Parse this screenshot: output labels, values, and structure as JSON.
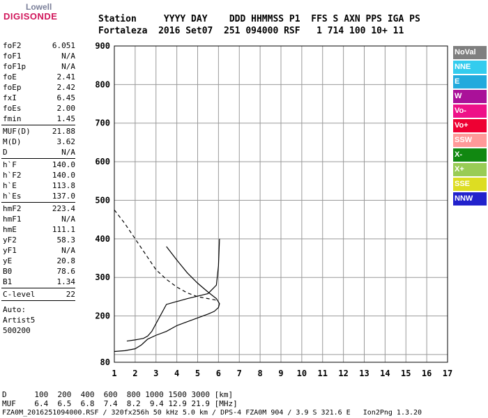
{
  "logo": {
    "top": "Lowell",
    "main": "DIGISONDE"
  },
  "header": {
    "line1": "Station     YYYY DAY    DDD HHMMSS P1  FFS S AXN PPS IGA PS",
    "line2": "Fortaleza  2016 Set07  251 094000 RSF   1 714 100 10+ 11"
  },
  "params": {
    "g1": [
      {
        "name": "foF2",
        "value": "6.051"
      },
      {
        "name": "foF1",
        "value": "N/A"
      },
      {
        "name": "foF1p",
        "value": "N/A"
      },
      {
        "name": "foE",
        "value": "2.41"
      },
      {
        "name": "foEp",
        "value": "2.42"
      },
      {
        "name": "fxI",
        "value": "6.45"
      },
      {
        "name": "foEs",
        "value": "2.00"
      },
      {
        "name": "fmin",
        "value": "1.45"
      }
    ],
    "g2": [
      {
        "name": "MUF(D)",
        "value": "21.88"
      },
      {
        "name": "M(D)",
        "value": "3.62"
      },
      {
        "name": "D",
        "value": "N/A"
      }
    ],
    "g3": [
      {
        "name": "h`F",
        "value": "140.0"
      },
      {
        "name": "h`F2",
        "value": "140.0"
      },
      {
        "name": "h`E",
        "value": "113.8"
      },
      {
        "name": "h`Es",
        "value": "137.0"
      }
    ],
    "g4": [
      {
        "name": "hmF2",
        "value": "223.4"
      },
      {
        "name": "hmF1",
        "value": "N/A"
      },
      {
        "name": "hmE",
        "value": "111.1"
      },
      {
        "name": "yF2",
        "value": "58.3"
      },
      {
        "name": "yF1",
        "value": "N/A"
      },
      {
        "name": "yE",
        "value": "20.8"
      },
      {
        "name": "B0",
        "value": "78.6"
      },
      {
        "name": "B1",
        "value": "1.34"
      }
    ],
    "g5": [
      {
        "name": "C-level",
        "value": "22"
      }
    ],
    "auto": [
      "Auto:",
      "Artist5",
      "500200"
    ]
  },
  "legend": [
    {
      "label": "NoVal",
      "color": "#7f7f7f"
    },
    {
      "label": "NNE",
      "color": "#33ccee"
    },
    {
      "label": "E",
      "color": "#22aadd"
    },
    {
      "label": "W",
      "color": "#aa1199"
    },
    {
      "label": "Vo-",
      "color": "#ee1188"
    },
    {
      "label": "Vo+",
      "color": "#ee0033"
    },
    {
      "label": "SSW",
      "color": "#ff9999"
    },
    {
      "label": "X-",
      "color": "#118811"
    },
    {
      "label": "X+",
      "color": "#99cc55"
    },
    {
      "label": "SSE",
      "color": "#dddd22"
    },
    {
      "label": "NNW",
      "color": "#2222cc"
    }
  ],
  "footer": {
    "row1": "D      100  200  400  600  800 1000 1500 3000 [km]",
    "row2": "MUF    6.4  6.5  6.8  7.4  8.2  9.4 12.9 21.9 [MHz]",
    "row3": "FZA0M_2016251094000.RSF / 320fx256h 50 kHz 5.0 km / DPS-4 FZA0M 904 / 3.9 S 321.6 E   Ion2Png 1.3.20"
  },
  "chart_data": {
    "type": "scatter",
    "title": "",
    "xlabel": "",
    "ylabel": "",
    "xlim": [
      1,
      17
    ],
    "ylim": [
      80,
      900
    ],
    "x_ticks": [
      1,
      2,
      3,
      4,
      5,
      6,
      7,
      8,
      9,
      10,
      11,
      12,
      13,
      14,
      15,
      16,
      17
    ],
    "y_ticks": [
      100,
      200,
      300,
      400,
      500,
      600,
      700,
      800,
      900
    ],
    "y_tick_labels_shown": [
      80,
      200,
      300,
      400,
      500,
      600,
      700,
      800,
      900
    ],
    "grid": true,
    "series": [
      {
        "name": "",
        "color": "#000000",
        "style": "solid",
        "x": [
          1.0,
          1.5,
          2.0,
          2.3,
          2.6,
          3.0,
          3.5,
          4.0,
          4.5,
          5.0,
          5.5,
          5.8,
          6.0,
          6.05,
          5.9,
          5.5,
          5.0,
          4.5,
          4.0,
          3.5
        ],
        "y": [
          108,
          110,
          115,
          125,
          140,
          150,
          160,
          175,
          185,
          195,
          205,
          212,
          222,
          232,
          245,
          262,
          285,
          312,
          345,
          380
        ]
      },
      {
        "name": "",
        "color": "#000000",
        "style": "dashed",
        "x": [
          1.0,
          1.5,
          2.0,
          2.5,
          3.0,
          3.5,
          4.0,
          4.5,
          5.0,
          5.5,
          6.0
        ],
        "y": [
          475,
          440,
          400,
          360,
          320,
          295,
          275,
          260,
          250,
          245,
          240
        ]
      },
      {
        "name": "",
        "color": "#000000",
        "style": "solid",
        "x": [
          1.6,
          2.0,
          2.2,
          2.4,
          2.6,
          2.8,
          3.5,
          4.5,
          5.5,
          5.9,
          6.0,
          6.05
        ],
        "y": [
          135,
          138,
          140,
          142,
          148,
          160,
          230,
          245,
          258,
          280,
          330,
          400
        ]
      }
    ]
  }
}
